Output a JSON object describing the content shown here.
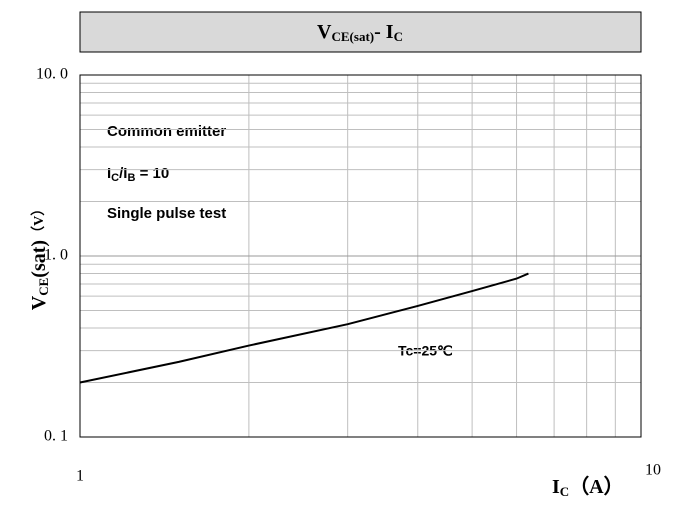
{
  "chart_data": {
    "type": "line",
    "title": [
      "V",
      "CE(sat)",
      "- I",
      "C"
    ],
    "y_label": [
      "V",
      "CE",
      "(sat)",
      "（V）"
    ],
    "x_label": [
      "I",
      "C",
      "（A）"
    ],
    "annotations": {
      "line1": "Common emitter",
      "line2": [
        "I",
        "C",
        "/I",
        "B",
        " = 10"
      ],
      "line3": "Single pulse test",
      "condition": "Tc=25℃"
    },
    "x": [
      1,
      1.5,
      2,
      3,
      4,
      5,
      6,
      6.3
    ],
    "series": [
      {
        "name": "Tc=25℃",
        "color": "#000000",
        "values": [
          0.2,
          0.26,
          0.32,
          0.42,
          0.53,
          0.64,
          0.75,
          0.8
        ]
      }
    ],
    "xlim": [
      1,
      10
    ],
    "ylim": [
      0.1,
      10
    ],
    "xticks": [
      1,
      10
    ],
    "yticks": [
      {
        "value": 0.1,
        "label": "0. 1"
      },
      {
        "value": 1,
        "label": "1. 0"
      },
      {
        "value": 10,
        "label": "10. 0"
      }
    ],
    "xminor": [
      2,
      3,
      4,
      5,
      6,
      7,
      8,
      9
    ],
    "yminor": [
      0.2,
      0.3,
      0.4,
      0.5,
      0.6,
      0.7,
      0.8,
      0.9,
      2,
      3,
      4,
      5,
      6,
      7,
      8,
      9
    ],
    "xlog": true,
    "ylog": true,
    "grid": true
  }
}
